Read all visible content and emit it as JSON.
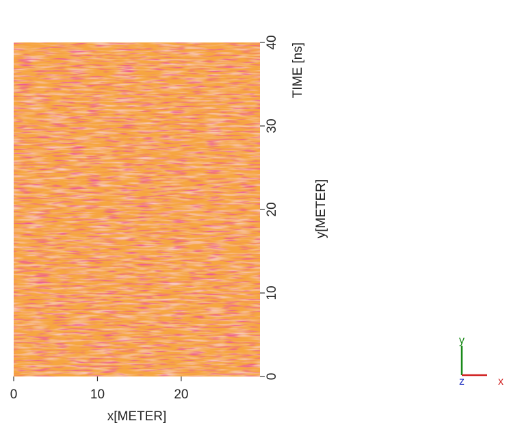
{
  "chart_data": {
    "type": "heatmap",
    "x_label": "x[METER]",
    "y_label": "y[METER]",
    "time_label": "TIME [ns]",
    "xlim": [
      0,
      29.4
    ],
    "xticks": [
      0,
      10,
      20
    ],
    "ylim": [
      0,
      40
    ],
    "yticks": [
      0,
      10,
      20,
      30,
      40
    ],
    "triad": {
      "x": "x",
      "y": "y",
      "z": "z"
    }
  }
}
